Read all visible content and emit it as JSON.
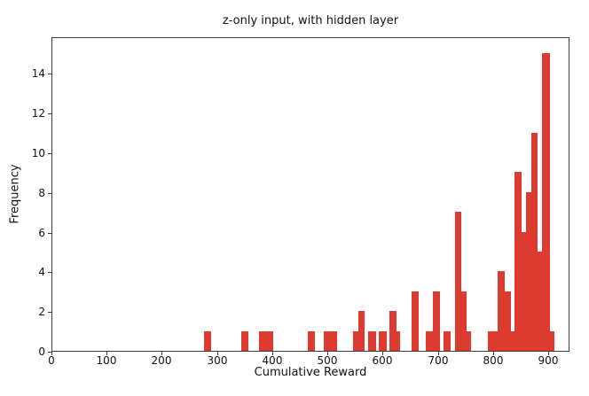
{
  "title": "z-only input, with hidden layer",
  "chart_data": {
    "type": "bar",
    "subtype": "histogram",
    "title": "z-only input, with hidden layer",
    "xlabel": "Cumulative Reward",
    "ylabel": "Frequency",
    "xlim": [
      0,
      935
    ],
    "ylim": [
      0,
      15.75
    ],
    "x_ticks": [
      0,
      100,
      200,
      300,
      400,
      500,
      600,
      700,
      800,
      900
    ],
    "y_ticks": [
      0,
      2,
      4,
      6,
      8,
      10,
      12,
      14
    ],
    "grid": false,
    "legend": "none",
    "bar_color": "#de3b30",
    "spine_color": "#3c3c3c",
    "bins": [
      {
        "x0": 274,
        "x1": 288,
        "count": 1
      },
      {
        "x0": 342,
        "x1": 355,
        "count": 1
      },
      {
        "x0": 374,
        "x1": 400,
        "count": 1
      },
      {
        "x0": 462,
        "x1": 475,
        "count": 1
      },
      {
        "x0": 491,
        "x1": 515,
        "count": 1
      },
      {
        "x0": 544,
        "x1": 555,
        "count": 1
      },
      {
        "x0": 555,
        "x1": 566,
        "count": 2
      },
      {
        "x0": 572,
        "x1": 586,
        "count": 1
      },
      {
        "x0": 592,
        "x1": 605,
        "count": 1
      },
      {
        "x0": 611,
        "x1": 624,
        "count": 2
      },
      {
        "x0": 624,
        "x1": 630,
        "count": 1
      },
      {
        "x0": 651,
        "x1": 664,
        "count": 3
      },
      {
        "x0": 677,
        "x1": 690,
        "count": 1
      },
      {
        "x0": 690,
        "x1": 702,
        "count": 3
      },
      {
        "x0": 709,
        "x1": 721,
        "count": 1
      },
      {
        "x0": 730,
        "x1": 740,
        "count": 7
      },
      {
        "x0": 740,
        "x1": 750,
        "count": 3
      },
      {
        "x0": 750,
        "x1": 759,
        "count": 1
      },
      {
        "x0": 789,
        "x1": 806,
        "count": 1
      },
      {
        "x0": 806,
        "x1": 819,
        "count": 4
      },
      {
        "x0": 819,
        "x1": 830,
        "count": 3
      },
      {
        "x0": 830,
        "x1": 837,
        "count": 1
      },
      {
        "x0": 837,
        "x1": 850,
        "count": 9
      },
      {
        "x0": 850,
        "x1": 858,
        "count": 6
      },
      {
        "x0": 858,
        "x1": 867,
        "count": 8
      },
      {
        "x0": 867,
        "x1": 879,
        "count": 11
      },
      {
        "x0": 879,
        "x1": 887,
        "count": 5
      },
      {
        "x0": 887,
        "x1": 901,
        "count": 15
      },
      {
        "x0": 901,
        "x1": 909,
        "count": 1
      }
    ]
  }
}
